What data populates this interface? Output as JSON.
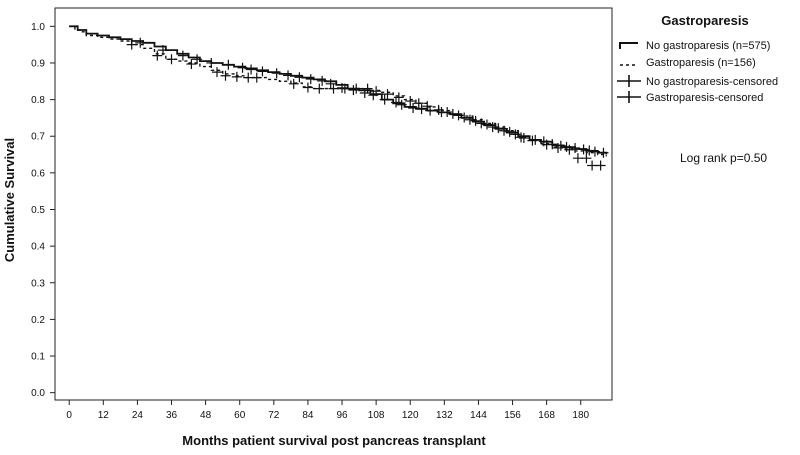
{
  "chart_data": {
    "type": "line",
    "subtype": "kaplan-meier",
    "xlabel": "Months patient survival post pancreas transplant",
    "ylabel": "Cumulative Survival",
    "xlim": [
      -5,
      191
    ],
    "ylim": [
      -0.02,
      1.05
    ],
    "xticks": [
      0,
      12,
      24,
      36,
      48,
      60,
      72,
      84,
      96,
      108,
      120,
      132,
      144,
      156,
      168,
      180
    ],
    "yticks": [
      0.0,
      0.1,
      0.2,
      0.3,
      0.4,
      0.5,
      0.6,
      0.7,
      0.8,
      0.9,
      1.0
    ],
    "ytick_labels": [
      "0.0",
      "0.1",
      "0.2",
      "0.3",
      "0.4",
      "0.5",
      "0.6",
      "0.7",
      "0.8",
      "0.9",
      "1.0"
    ],
    "grid": false,
    "legend": {
      "title": "Gastroparesis",
      "position": "top-right",
      "entries": [
        "No gastroparesis (n=575)",
        "Gastroparesis (n=156)",
        "No gastroparesis-censored",
        "Gastroparesis-censored"
      ]
    },
    "annotation": "Log rank p=0.50",
    "series": [
      {
        "name": "No gastroparesis (n=575)",
        "style": "solid",
        "x": [
          0,
          3,
          6,
          10,
          14,
          18,
          22,
          26,
          30,
          34,
          38,
          42,
          46,
          50,
          54,
          58,
          62,
          66,
          70,
          74,
          78,
          82,
          86,
          90,
          94,
          98,
          102,
          106,
          110,
          114,
          118,
          122,
          126,
          130,
          134,
          138,
          142,
          146,
          150,
          154,
          158,
          162,
          166,
          170,
          174,
          178,
          182,
          186,
          189
        ],
        "y": [
          1.0,
          0.99,
          0.98,
          0.975,
          0.97,
          0.965,
          0.96,
          0.955,
          0.945,
          0.935,
          0.925,
          0.915,
          0.905,
          0.9,
          0.895,
          0.89,
          0.885,
          0.88,
          0.875,
          0.87,
          0.865,
          0.86,
          0.855,
          0.85,
          0.84,
          0.83,
          0.825,
          0.815,
          0.8,
          0.79,
          0.78,
          0.775,
          0.77,
          0.765,
          0.76,
          0.75,
          0.74,
          0.73,
          0.72,
          0.71,
          0.7,
          0.69,
          0.685,
          0.675,
          0.67,
          0.665,
          0.66,
          0.655,
          0.65
        ]
      },
      {
        "name": "Gastroparesis (n=156)",
        "style": "dashed",
        "x": [
          0,
          2,
          4,
          6,
          10,
          14,
          18,
          22,
          26,
          30,
          34,
          38,
          42,
          46,
          50,
          54,
          58,
          62,
          66,
          70,
          74,
          78,
          82,
          86,
          90,
          94,
          98,
          102,
          106,
          110,
          114,
          118,
          122,
          126,
          130,
          134,
          138,
          142,
          146,
          150,
          154,
          158,
          162,
          166,
          170,
          174,
          178,
          182,
          186,
          189
        ],
        "y": [
          1.0,
          0.99,
          0.985,
          0.975,
          0.97,
          0.965,
          0.96,
          0.95,
          0.94,
          0.925,
          0.91,
          0.905,
          0.9,
          0.89,
          0.88,
          0.87,
          0.865,
          0.86,
          0.86,
          0.855,
          0.85,
          0.845,
          0.835,
          0.83,
          0.83,
          0.83,
          0.83,
          0.83,
          0.825,
          0.82,
          0.81,
          0.8,
          0.79,
          0.78,
          0.77,
          0.76,
          0.755,
          0.745,
          0.735,
          0.725,
          0.715,
          0.7,
          0.69,
          0.68,
          0.67,
          0.665,
          0.66,
          0.655,
          0.65,
          0.645
        ]
      }
    ],
    "censored": [
      {
        "name": "No gastroparesis-censored",
        "x": [
          25,
          33,
          40,
          45,
          50,
          56,
          61,
          64,
          68,
          73,
          77,
          81,
          85,
          89,
          92,
          96,
          100,
          104,
          107,
          111,
          115,
          117,
          121,
          124,
          127,
          131,
          135,
          139,
          141,
          145,
          149,
          153,
          157,
          160,
          164,
          167,
          170,
          173,
          175,
          178,
          181,
          183,
          185,
          188
        ],
        "y": [
          0.955,
          0.935,
          0.92,
          0.91,
          0.9,
          0.895,
          0.887,
          0.882,
          0.877,
          0.872,
          0.866,
          0.861,
          0.856,
          0.851,
          0.843,
          0.832,
          0.826,
          0.818,
          0.812,
          0.8,
          0.792,
          0.786,
          0.777,
          0.774,
          0.77,
          0.766,
          0.761,
          0.751,
          0.745,
          0.735,
          0.725,
          0.715,
          0.705,
          0.695,
          0.69,
          0.686,
          0.678,
          0.674,
          0.671,
          0.668,
          0.664,
          0.661,
          0.658,
          0.655
        ]
      },
      {
        "name": "Gastroparesis-censored",
        "x": [
          22,
          31,
          36,
          43,
          52,
          55,
          59,
          63,
          66,
          79,
          84,
          88,
          93,
          97,
          101,
          105,
          108,
          112,
          116,
          120,
          123,
          126,
          130,
          133,
          137,
          143,
          147,
          151,
          155,
          159,
          163,
          168,
          172,
          176,
          179,
          182,
          184,
          187
        ],
        "y": [
          0.95,
          0.92,
          0.91,
          0.897,
          0.875,
          0.865,
          0.862,
          0.86,
          0.86,
          0.843,
          0.833,
          0.83,
          0.83,
          0.83,
          0.83,
          0.83,
          0.823,
          0.815,
          0.806,
          0.796,
          0.79,
          0.782,
          0.772,
          0.766,
          0.757,
          0.742,
          0.732,
          0.722,
          0.712,
          0.697,
          0.688,
          0.677,
          0.668,
          0.663,
          0.64,
          0.64,
          0.62,
          0.62
        ]
      }
    ]
  }
}
